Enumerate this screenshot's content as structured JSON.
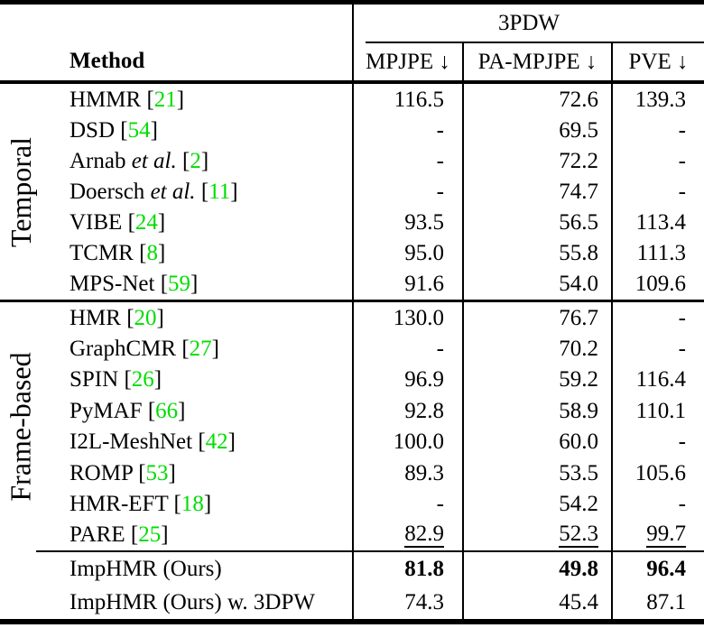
{
  "header": {
    "dataset": "3PDW",
    "method_label": "Method",
    "columns": [
      "MPJPE ↓",
      "PA-MPJPE ↓",
      "PVE ↓"
    ]
  },
  "punct": {
    "open": "[",
    "close": "]"
  },
  "colors": {
    "citation": "#00dd00"
  },
  "groups": [
    {
      "label": "Temporal",
      "rows": [
        {
          "pre": "HMMR ",
          "etal": "",
          "cite": "21",
          "values": [
            "116.5",
            "72.6",
            "139.3"
          ],
          "style": ""
        },
        {
          "pre": "DSD ",
          "etal": "",
          "cite": "54",
          "values": [
            "-",
            "69.5",
            "-"
          ],
          "style": ""
        },
        {
          "pre": "Arnab ",
          "etal": "et al. ",
          "cite": "2",
          "values": [
            "-",
            "72.2",
            "-"
          ],
          "style": ""
        },
        {
          "pre": "Doersch ",
          "etal": "et al. ",
          "cite": "11",
          "values": [
            "-",
            "74.7",
            "-"
          ],
          "style": ""
        },
        {
          "pre": "VIBE ",
          "etal": "",
          "cite": "24",
          "values": [
            "93.5",
            "56.5",
            "113.4"
          ],
          "style": ""
        },
        {
          "pre": "TCMR ",
          "etal": "",
          "cite": "8",
          "values": [
            "95.0",
            "55.8",
            "111.3"
          ],
          "style": ""
        },
        {
          "pre": "MPS-Net ",
          "etal": "",
          "cite": "59",
          "values": [
            "91.6",
            "54.0",
            "109.6"
          ],
          "style": ""
        }
      ]
    },
    {
      "label": "Frame-based",
      "rows": [
        {
          "pre": "HMR ",
          "etal": "",
          "cite": "20",
          "values": [
            "130.0",
            "76.7",
            "-"
          ],
          "style": ""
        },
        {
          "pre": "GraphCMR ",
          "etal": "",
          "cite": "27",
          "values": [
            "-",
            "70.2",
            "-"
          ],
          "style": ""
        },
        {
          "pre": "SPIN ",
          "etal": "",
          "cite": "26",
          "values": [
            "96.9",
            "59.2",
            "116.4"
          ],
          "style": ""
        },
        {
          "pre": "PyMAF ",
          "etal": "",
          "cite": "66",
          "values": [
            "92.8",
            "58.9",
            "110.1"
          ],
          "style": ""
        },
        {
          "pre": "I2L-MeshNet ",
          "etal": "",
          "cite": "42",
          "values": [
            "100.0",
            "60.0",
            "-"
          ],
          "style": ""
        },
        {
          "pre": "ROMP ",
          "etal": "",
          "cite": "53",
          "values": [
            "89.3",
            "53.5",
            "105.6"
          ],
          "style": ""
        },
        {
          "pre": "HMR-EFT ",
          "etal": "",
          "cite": "18",
          "values": [
            "-",
            "54.2",
            "-"
          ],
          "style": ""
        },
        {
          "pre": "PARE ",
          "etal": "",
          "cite": "25",
          "values": [
            "82.9",
            "52.3",
            "99.7"
          ],
          "style": "underline"
        }
      ]
    },
    {
      "label": "",
      "rows": [
        {
          "pre": "ImpHMR (Ours)",
          "etal": "",
          "cite": "",
          "values": [
            "81.8",
            "49.8",
            "96.4"
          ],
          "style": "bold"
        },
        {
          "pre": "ImpHMR (Ours) w. 3DPW",
          "etal": "",
          "cite": "",
          "values": [
            "74.3",
            "45.4",
            "87.1"
          ],
          "style": ""
        }
      ]
    }
  ]
}
